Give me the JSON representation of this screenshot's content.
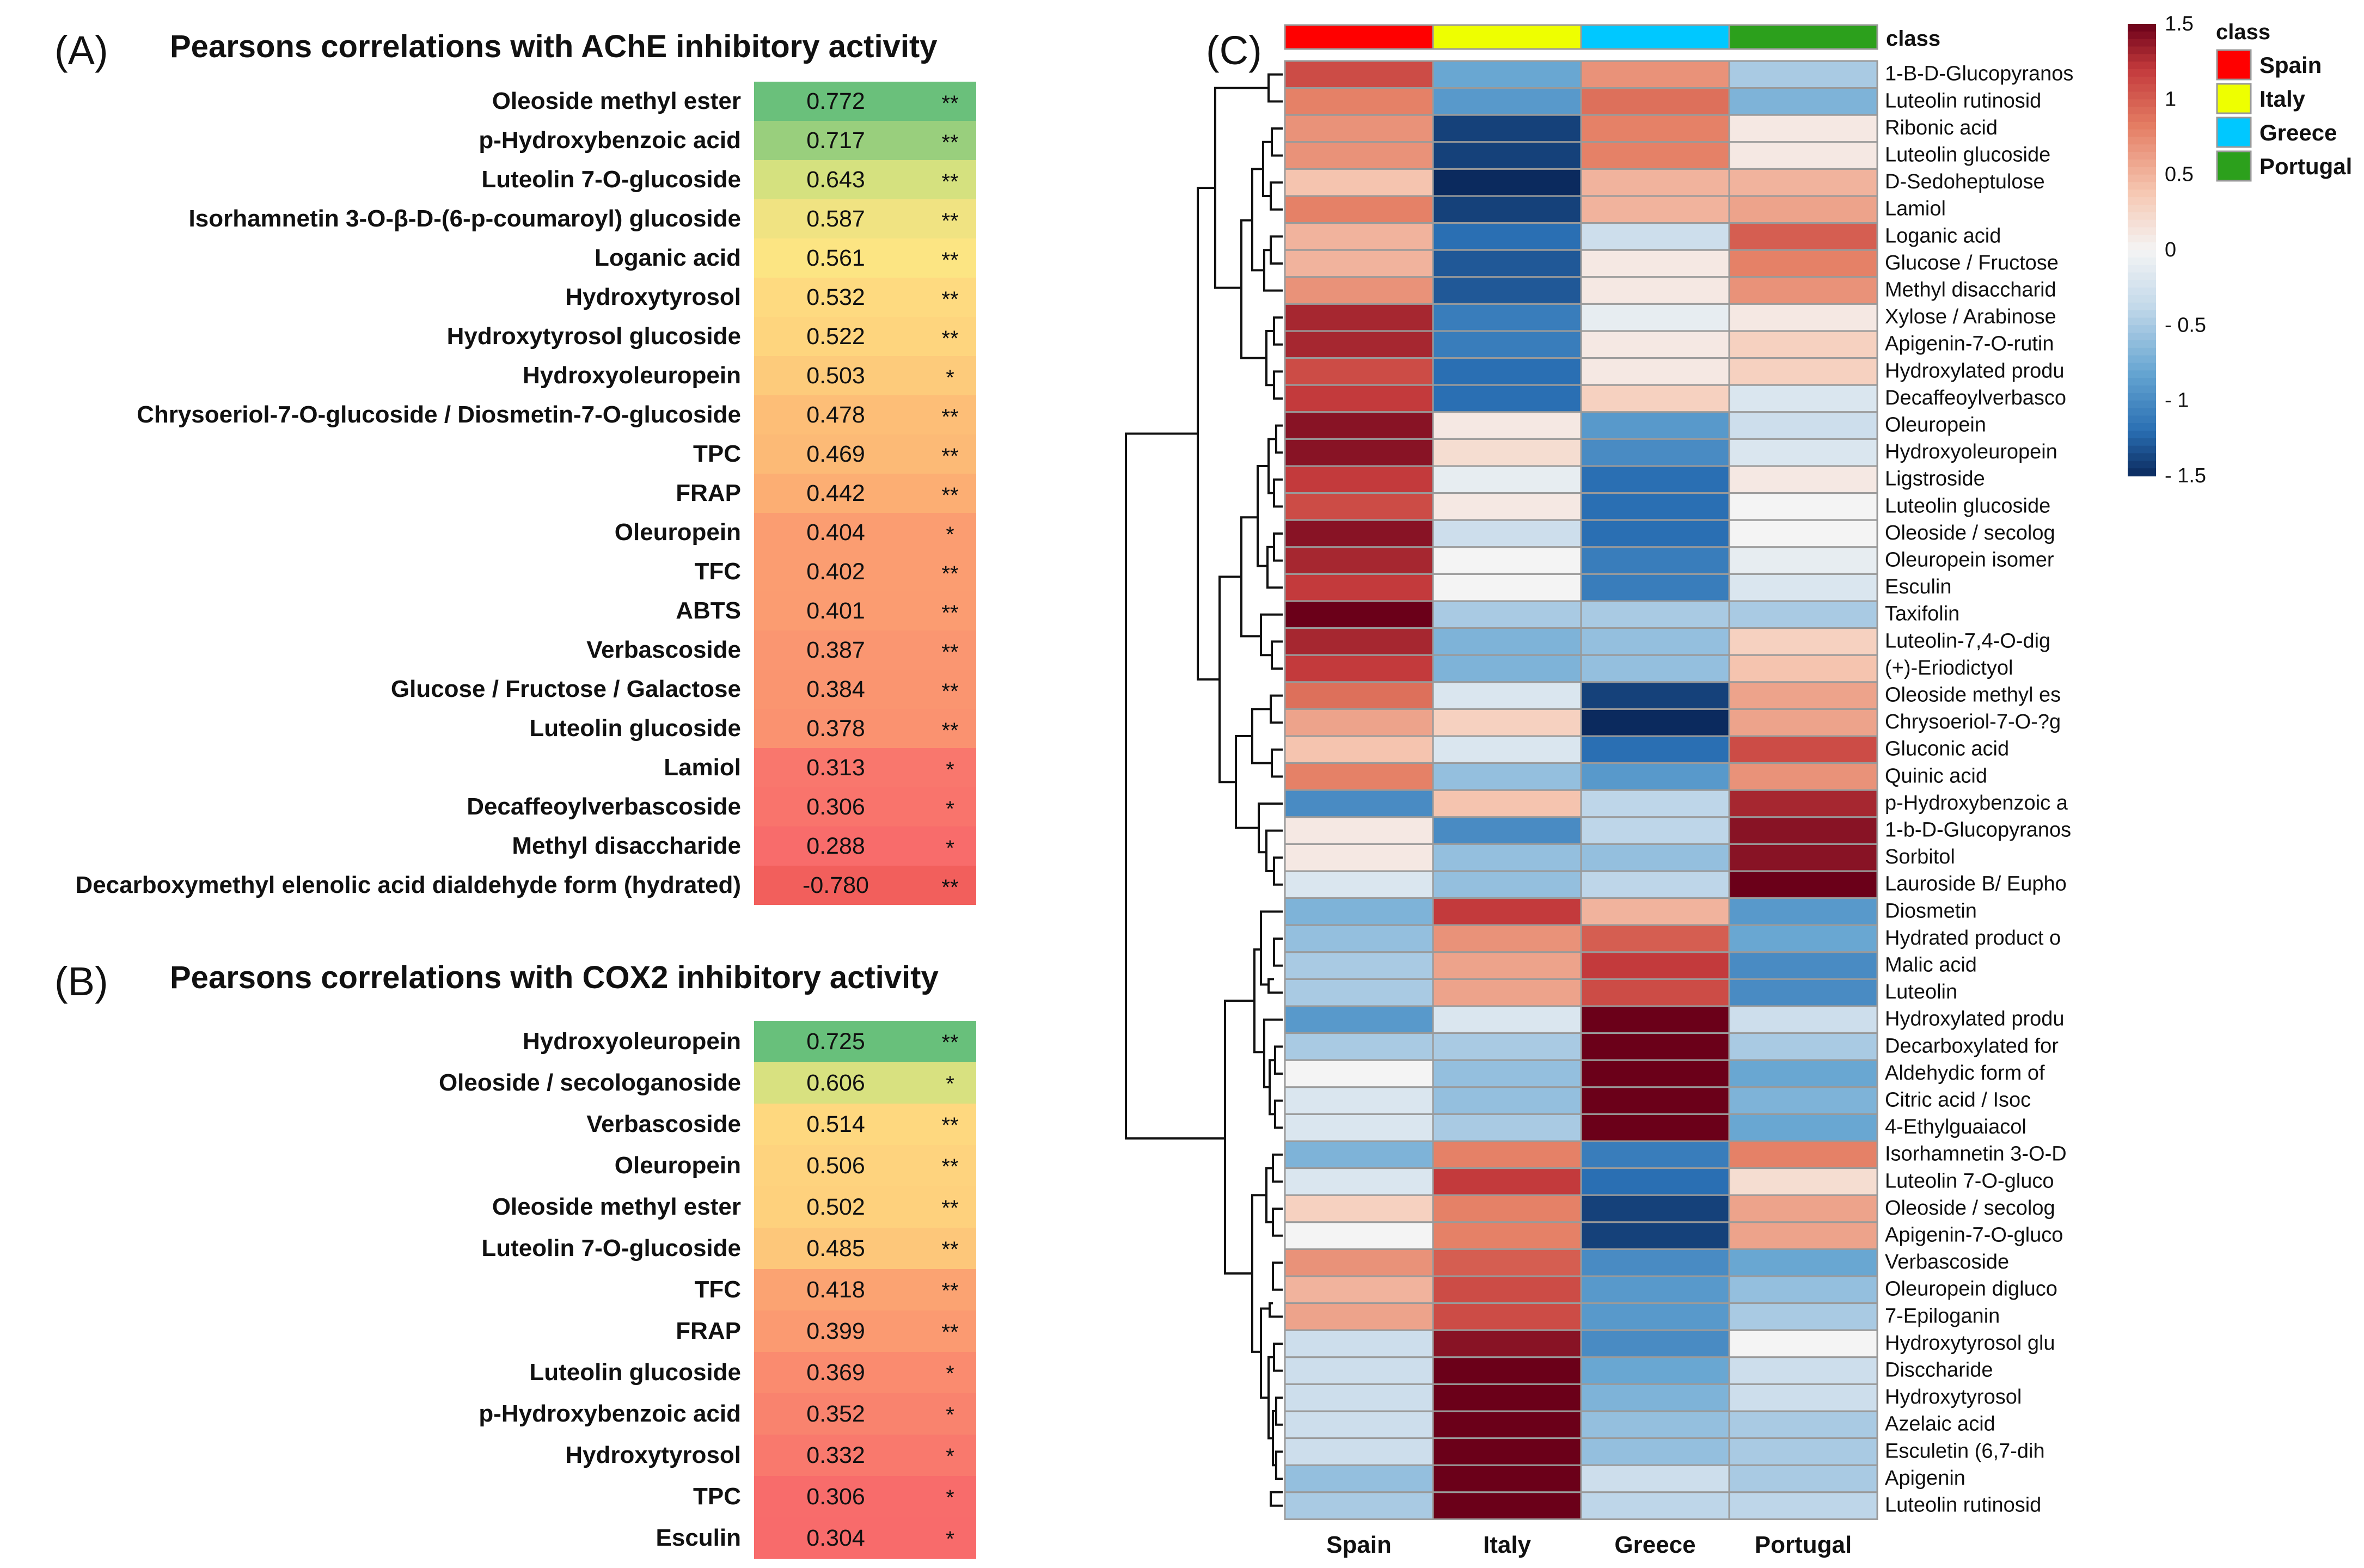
{
  "colors": {
    "negative": "#f25f5c",
    "panel_c_low": "#0b2a5e",
    "panel_c_mid": "#f2f2f2",
    "panel_c_high": "#6b0019",
    "class_spain": "#ff0000",
    "class_italy": "#eeff00",
    "class_greece": "#00c8ff",
    "class_portugal": "#2ca01c"
  },
  "panel_a": {
    "label": "(A)",
    "title": "Pearsons correlations with AChE inhibitory activity",
    "chart_data": {
      "type": "table",
      "rows": [
        {
          "name": "Oleoside methyl ester",
          "value": "0.772",
          "sig": "**"
        },
        {
          "name": "p-Hydroxybenzoic acid",
          "value": "0.717",
          "sig": "**"
        },
        {
          "name": "Luteolin 7-O-glucoside",
          "value": "0.643",
          "sig": "**"
        },
        {
          "name": "Isorhamnetin 3-O-β-D-(6-p-coumaroyl) glucoside",
          "value": "0.587",
          "sig": "**"
        },
        {
          "name": "Loganic acid",
          "value": "0.561",
          "sig": "**"
        },
        {
          "name": "Hydroxytyrosol",
          "value": "0.532",
          "sig": "**"
        },
        {
          "name": "Hydroxytyrosol glucoside",
          "value": "0.522",
          "sig": "**"
        },
        {
          "name": "Hydroxyoleuropein",
          "value": "0.503",
          "sig": "*"
        },
        {
          "name": "Chrysoeriol-7-O-glucoside / Diosmetin-7-O-glucoside",
          "value": "0.478",
          "sig": "**"
        },
        {
          "name": "TPC",
          "value": "0.469",
          "sig": "**"
        },
        {
          "name": "FRAP",
          "value": "0.442",
          "sig": "**"
        },
        {
          "name": "Oleuropein",
          "value": "0.404",
          "sig": "*"
        },
        {
          "name": "TFC",
          "value": "0.402",
          "sig": "**"
        },
        {
          "name": "ABTS",
          "value": "0.401",
          "sig": "**"
        },
        {
          "name": "Verbascoside",
          "value": "0.387",
          "sig": "**"
        },
        {
          "name": "Glucose / Fructose / Galactose",
          "value": "0.384",
          "sig": "**"
        },
        {
          "name": "Luteolin glucoside",
          "value": "0.378",
          "sig": "**"
        },
        {
          "name": "Lamiol",
          "value": "0.313",
          "sig": "*"
        },
        {
          "name": "Decaffeoylverbascoside",
          "value": "0.306",
          "sig": "*"
        },
        {
          "name": "Methyl disaccharide",
          "value": "0.288",
          "sig": "*"
        },
        {
          "name": "Decarboxymethyl elenolic acid dialdehyde form (hydrated)",
          "value": "-0.780",
          "sig": "**"
        }
      ]
    }
  },
  "panel_b": {
    "label": "(B)",
    "title": "Pearsons correlations with COX2 inhibitory activity",
    "chart_data": {
      "type": "table",
      "rows": [
        {
          "name": "Hydroxyoleuropein",
          "value": "0.725",
          "sig": "**"
        },
        {
          "name": "Oleoside / secologanoside",
          "value": "0.606",
          "sig": "*"
        },
        {
          "name": "Verbascoside",
          "value": "0.514",
          "sig": "**"
        },
        {
          "name": "Oleuropein",
          "value": "0.506",
          "sig": "**"
        },
        {
          "name": "Oleoside methyl ester",
          "value": "0.502",
          "sig": "**"
        },
        {
          "name": "Luteolin 7-O-glucoside",
          "value": "0.485",
          "sig": "**"
        },
        {
          "name": "TFC",
          "value": "0.418",
          "sig": "**"
        },
        {
          "name": "FRAP",
          "value": "0.399",
          "sig": "**"
        },
        {
          "name": "Luteolin glucoside",
          "value": "0.369",
          "sig": "*"
        },
        {
          "name": "p-Hydroxybenzoic acid",
          "value": "0.352",
          "sig": "*"
        },
        {
          "name": "Hydroxytyrosol",
          "value": "0.332",
          "sig": "*"
        },
        {
          "name": "TPC",
          "value": "0.306",
          "sig": "*"
        },
        {
          "name": "Esculin",
          "value": "0.304",
          "sig": "*"
        }
      ]
    }
  },
  "panel_c": {
    "label": "(C)",
    "chart_data": {
      "type": "heatmap",
      "class_label": "class",
      "columns": [
        "Spain",
        "Italy",
        "Greece",
        "Portugal"
      ],
      "legend_title": "class",
      "scale_ticks": [
        "1.5",
        "1",
        "0.5",
        "0",
        "- 0.5",
        "- 1",
        "- 1.5"
      ],
      "zlim": [
        -1.5,
        1.5
      ],
      "rows": [
        "1-B-D-Glucopyranos",
        "Luteolin rutinosid",
        "Ribonic acid",
        "Luteolin glucoside",
        "D-Sedoheptulose",
        "Lamiol",
        "Loganic acid",
        "Glucose / Fructose",
        "Methyl disaccharid",
        "Xylose / Arabinose",
        "Apigenin-7-O-rutin",
        "Hydroxylated produ",
        "Decaffeoylverbasco",
        "Oleuropein",
        "Hydroxyoleuropein",
        "Ligstroside",
        "Luteolin glucoside",
        "Oleoside / secolog",
        "Oleuropein isomer",
        "Esculin",
        "Taxifolin",
        "Luteolin-7,4-O-dig",
        "(+)-Eriodictyol",
        "Oleoside methyl es",
        "Chrysoeriol-7-O-?g",
        "Gluconic acid",
        "Quinic acid",
        "p-Hydroxybenzoic a",
        "1-b-D-Glucopyranos",
        "Sorbitol",
        "Lauroside B/ Eupho",
        "Diosmetin",
        "Hydrated product o",
        "Malic acid",
        "Luteolin",
        "Hydroxylated produ",
        "Decarboxylated for",
        "Aldehydic form of",
        "Citric acid / Isoc",
        "4-Ethylguaiacol",
        "Isorhamnetin 3-O-D",
        "Luteolin 7-O-gluco",
        "Oleoside / secolog",
        "Apigenin-7-O-gluco",
        "Verbascoside",
        "Oleuropein digluco",
        "7-Epiloganin",
        "Hydroxytyrosol glu",
        "Disccharide",
        "Hydroxytyrosol",
        "Azelaic acid",
        "Esculetin (6,7-dih",
        "Apigenin",
        "Luteolin rutinosid"
      ],
      "values": [
        [
          1.1,
          -0.8,
          0.7,
          -0.5
        ],
        [
          0.8,
          -0.9,
          0.9,
          -0.7
        ],
        [
          0.7,
          -1.4,
          0.8,
          0.1
        ],
        [
          0.7,
          -1.4,
          0.8,
          0.1
        ],
        [
          0.4,
          -1.5,
          0.5,
          0.5
        ],
        [
          0.8,
          -1.4,
          0.5,
          0.6
        ],
        [
          0.5,
          -1.2,
          -0.3,
          1.0
        ],
        [
          0.5,
          -1.3,
          0.1,
          0.8
        ],
        [
          0.7,
          -1.3,
          0.1,
          0.7
        ],
        [
          1.3,
          -1.1,
          -0.1,
          0.1
        ],
        [
          1.3,
          -1.1,
          0.1,
          0.3
        ],
        [
          1.1,
          -1.2,
          0.1,
          0.3
        ],
        [
          1.2,
          -1.2,
          0.3,
          -0.2
        ],
        [
          1.4,
          0.1,
          -0.9,
          -0.3
        ],
        [
          1.4,
          0.2,
          -1.0,
          -0.2
        ],
        [
          1.2,
          -0.1,
          -1.2,
          0.1
        ],
        [
          1.1,
          0.1,
          -1.2,
          0.0
        ],
        [
          1.4,
          -0.3,
          -1.2,
          0.0
        ],
        [
          1.3,
          0.0,
          -1.1,
          -0.1
        ],
        [
          1.2,
          0.0,
          -1.1,
          -0.2
        ],
        [
          1.5,
          -0.5,
          -0.5,
          -0.5
        ],
        [
          1.3,
          -0.7,
          -0.6,
          0.3
        ],
        [
          1.2,
          -0.7,
          -0.6,
          0.4
        ],
        [
          0.9,
          -0.2,
          -1.4,
          0.6
        ],
        [
          0.6,
          0.3,
          -1.5,
          0.6
        ],
        [
          0.4,
          -0.2,
          -1.2,
          1.1
        ],
        [
          0.8,
          -0.6,
          -0.9,
          0.7
        ],
        [
          -1.0,
          0.4,
          -0.4,
          1.3
        ],
        [
          0.1,
          -1.0,
          -0.4,
          1.4
        ],
        [
          0.1,
          -0.6,
          -0.6,
          1.4
        ],
        [
          -0.2,
          -0.6,
          -0.4,
          1.5
        ],
        [
          -0.7,
          1.2,
          0.5,
          -0.9
        ],
        [
          -0.6,
          0.7,
          1.0,
          -0.8
        ],
        [
          -0.5,
          0.6,
          1.2,
          -1.0
        ],
        [
          -0.5,
          0.6,
          1.1,
          -1.0
        ],
        [
          -0.9,
          -0.2,
          1.5,
          -0.3
        ],
        [
          -0.5,
          -0.5,
          1.5,
          -0.5
        ],
        [
          0.0,
          -0.6,
          1.5,
          -0.8
        ],
        [
          -0.2,
          -0.6,
          1.5,
          -0.7
        ],
        [
          -0.2,
          -0.5,
          1.5,
          -0.8
        ],
        [
          -0.7,
          0.8,
          -1.1,
          0.8
        ],
        [
          -0.2,
          1.2,
          -1.2,
          0.2
        ],
        [
          0.3,
          0.8,
          -1.4,
          0.6
        ],
        [
          0.0,
          0.8,
          -1.4,
          0.6
        ],
        [
          0.7,
          1.0,
          -1.0,
          -0.8
        ],
        [
          0.5,
          1.1,
          -0.9,
          -0.6
        ],
        [
          0.6,
          1.1,
          -0.9,
          -0.5
        ],
        [
          -0.3,
          1.4,
          -1.0,
          0.0
        ],
        [
          -0.3,
          1.5,
          -0.8,
          -0.3
        ],
        [
          -0.3,
          1.5,
          -0.7,
          -0.3
        ],
        [
          -0.3,
          1.5,
          -0.6,
          -0.5
        ],
        [
          -0.3,
          1.5,
          -0.6,
          -0.5
        ],
        [
          -0.6,
          1.5,
          -0.3,
          -0.5
        ],
        [
          -0.5,
          1.5,
          -0.4,
          -0.4
        ]
      ]
    }
  }
}
